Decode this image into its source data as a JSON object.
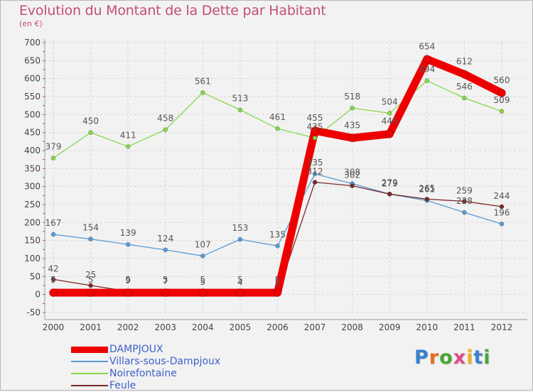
{
  "title": "Evolution du Montant de la Dette par Habitant",
  "subtitle": "(en €)",
  "chart_data": {
    "type": "line",
    "title": "Evolution du Montant de la Dette par Habitant",
    "subtitle": "(en €)",
    "x": [
      "2000",
      "2001",
      "2002",
      "2003",
      "2004",
      "2005",
      "2006",
      "2007",
      "2008",
      "2009",
      "2010",
      "2011",
      "2012"
    ],
    "ylim": [
      -50,
      700
    ],
    "yticks": [
      -50,
      0,
      50,
      100,
      150,
      200,
      250,
      300,
      350,
      400,
      450,
      500,
      550,
      600,
      650,
      700
    ],
    "grid": true,
    "legend_position": "bottom-left",
    "series": [
      {
        "name": "DAMPJOUX",
        "color": "#ee0000",
        "values": [
          5,
          5,
          5,
          5,
          5,
          5,
          5,
          455,
          435,
          446,
          654,
          612,
          560
        ],
        "labels": [
          "5",
          "5",
          "5",
          "5",
          "5",
          "5",
          "5",
          "455",
          "435",
          "446",
          "654",
          "612",
          "560"
        ]
      },
      {
        "name": "Villars-sous-Dampjoux",
        "color": "#5a9bd4",
        "values": [
          167,
          154,
          139,
          124,
          107,
          153,
          135,
          335,
          308,
          279,
          261,
          228,
          196
        ],
        "labels": [
          "167",
          "154",
          "139",
          "124",
          "107",
          "153",
          "135",
          "335",
          "308",
          "279",
          "261",
          "228",
          "196"
        ]
      },
      {
        "name": "Noirefontaine",
        "color": "#88d84a",
        "values": [
          379,
          450,
          411,
          458,
          561,
          513,
          461,
          435,
          518,
          504,
          594,
          546,
          509
        ],
        "labels": [
          "379",
          "450",
          "411",
          "458",
          "561",
          "513",
          "461",
          "435",
          "518",
          "504",
          "594",
          "546",
          "509"
        ]
      },
      {
        "name": "Feule",
        "color": "#7a2a2a",
        "values": [
          42,
          25,
          9,
          7,
          5,
          4,
          2,
          312,
          302,
          279,
          265,
          259,
          244
        ],
        "labels": [
          "42",
          "25",
          "9",
          "7",
          "5",
          "4",
          "2",
          "312",
          "302",
          "279",
          "265",
          "259",
          "244"
        ]
      }
    ]
  },
  "logo": {
    "text": "Proxiti",
    "letters": [
      "P",
      "r",
      "o",
      "x",
      "i",
      "t",
      "i"
    ],
    "colors": [
      "#3a7fd0",
      "#e86a1a",
      "#4aa532",
      "#e04a8a",
      "#f0b020",
      "#3a7fd0",
      "#4aa532"
    ]
  }
}
